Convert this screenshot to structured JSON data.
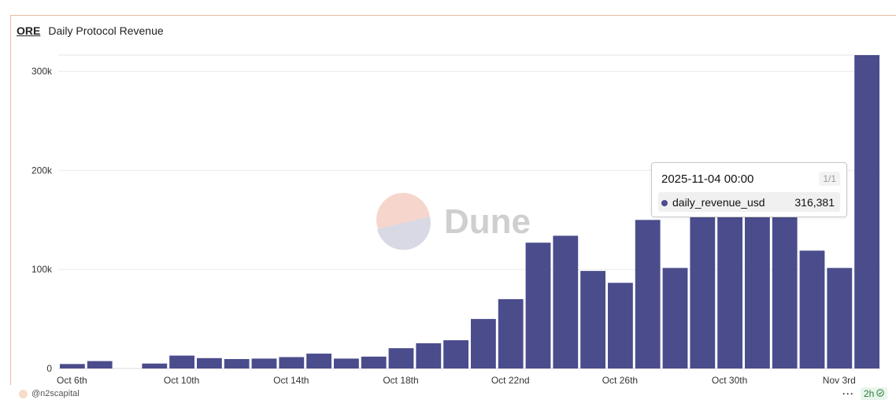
{
  "header": {
    "project": "ORE",
    "title": "Daily Protocol Revenue"
  },
  "tooltip": {
    "date": "2025-11-04 00:00",
    "page": "1/1",
    "series_name": "daily_revenue_usd",
    "value": "316,381"
  },
  "watermark": {
    "text": "Dune"
  },
  "footer": {
    "author": "@n2scapital",
    "age": "2h"
  },
  "colors": {
    "bar": "#4b4c8c",
    "card_border": "#e8b8a6"
  },
  "chart_data": {
    "type": "bar",
    "x": [
      "2025-10-06",
      "2025-10-07",
      "2025-10-08",
      "2025-10-09",
      "2025-10-10",
      "2025-10-11",
      "2025-10-12",
      "2025-10-13",
      "2025-10-14",
      "2025-10-15",
      "2025-10-16",
      "2025-10-17",
      "2025-10-18",
      "2025-10-19",
      "2025-10-20",
      "2025-10-21",
      "2025-10-22",
      "2025-10-23",
      "2025-10-24",
      "2025-10-25",
      "2025-10-26",
      "2025-10-27",
      "2025-10-28",
      "2025-10-29",
      "2025-10-30",
      "2025-10-31",
      "2025-11-01",
      "2025-11-02",
      "2025-11-03",
      "2025-11-04"
    ],
    "series": [
      {
        "name": "daily_revenue_usd",
        "values": [
          4500,
          7500,
          0,
          5000,
          13000,
          10500,
          9500,
          10000,
          11500,
          15000,
          10000,
          12000,
          20500,
          25500,
          28500,
          50000,
          70000,
          127000,
          134000,
          98500,
          86500,
          150000,
          101500,
          155000,
          155000,
          155000,
          155000,
          119000,
          101500,
          316381
        ]
      }
    ],
    "x_tick_labels": [
      "Oct 6th",
      "Oct 10th",
      "Oct 14th",
      "Oct 18th",
      "Oct 22nd",
      "Oct 26th",
      "Oct 30th",
      "Nov 3rd"
    ],
    "x_tick_index": [
      0,
      4,
      8,
      12,
      16,
      20,
      24,
      28
    ],
    "y_ticks": [
      0,
      100000,
      200000,
      300000
    ],
    "y_tick_labels": [
      "0",
      "100k",
      "200k",
      "300k"
    ],
    "ylim": [
      0,
      316381
    ],
    "grid": true,
    "legend": "none"
  }
}
